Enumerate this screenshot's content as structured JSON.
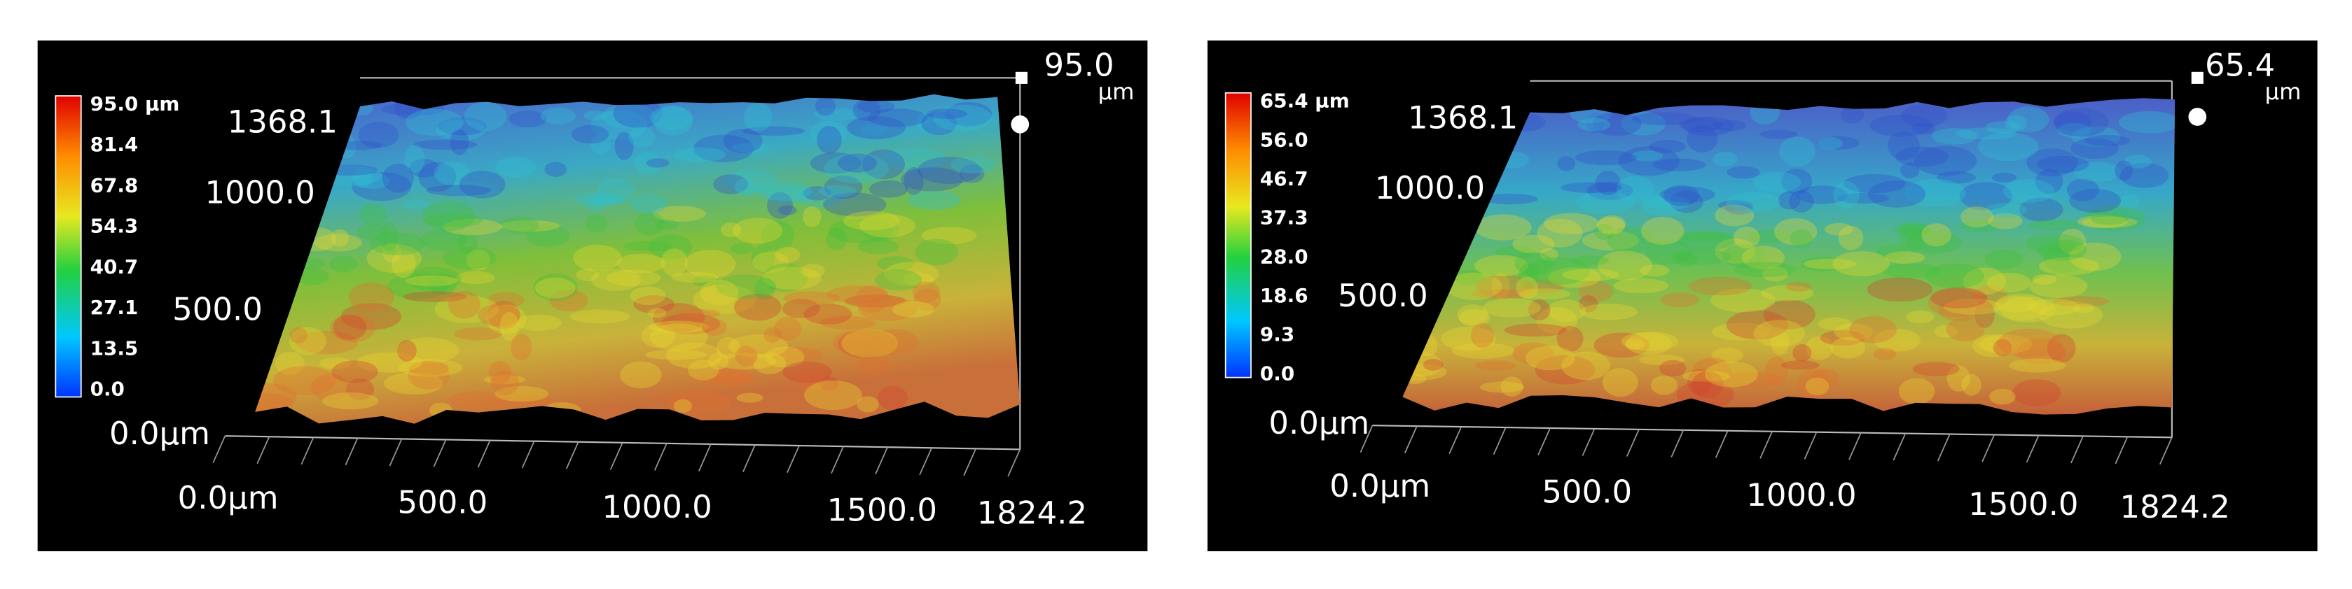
{
  "panels": [
    {
      "colorbar": [
        "95.0 µm",
        "81.4",
        "67.8",
        "54.3",
        "40.7",
        "27.1",
        "13.5",
        "0.0"
      ],
      "z_max": "95.0",
      "z_unit": "µm",
      "y_axis": [
        "1368.1",
        "1000.0",
        "500.0",
        "0.0µm"
      ],
      "x_axis": [
        "0.0µm",
        "500.0",
        "1000.0",
        "1500.0",
        "1824.2"
      ]
    },
    {
      "colorbar": [
        "65.4 µm",
        "56.0",
        "46.7",
        "37.3",
        "28.0",
        "18.6",
        "9.3",
        "0.0"
      ],
      "z_max": "65.4",
      "z_unit": "µm",
      "y_axis": [
        "1368.1",
        "1000.0",
        "500.0",
        "0.0µm"
      ],
      "x_axis": [
        "0.0µm",
        "500.0",
        "1000.0",
        "1500.0",
        "1824.2"
      ]
    }
  ]
}
